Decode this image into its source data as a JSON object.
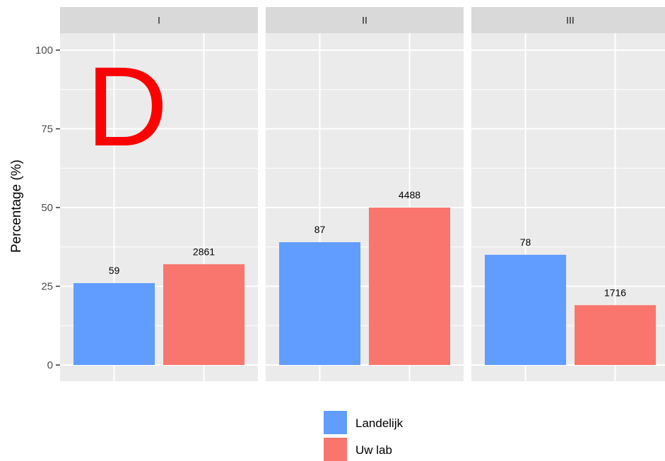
{
  "overlay_letter": "D",
  "chart_data": {
    "type": "bar",
    "facets": [
      "I",
      "II",
      "III"
    ],
    "series": [
      {
        "name": "Landelijk",
        "color": "#619cff",
        "values": [
          26,
          39,
          35
        ],
        "labels": [
          "59",
          "87",
          "78"
        ]
      },
      {
        "name": "Uw lab",
        "color": "#f8766d",
        "values": [
          32,
          50,
          19
        ],
        "labels": [
          "2861",
          "4488",
          "1716"
        ]
      }
    ],
    "xlabel": "",
    "ylabel": "Percentage (%)",
    "ylim": [
      0,
      100
    ],
    "yticks": [
      0,
      25,
      50,
      75,
      100
    ],
    "grid": true,
    "legend_position": "bottom"
  }
}
